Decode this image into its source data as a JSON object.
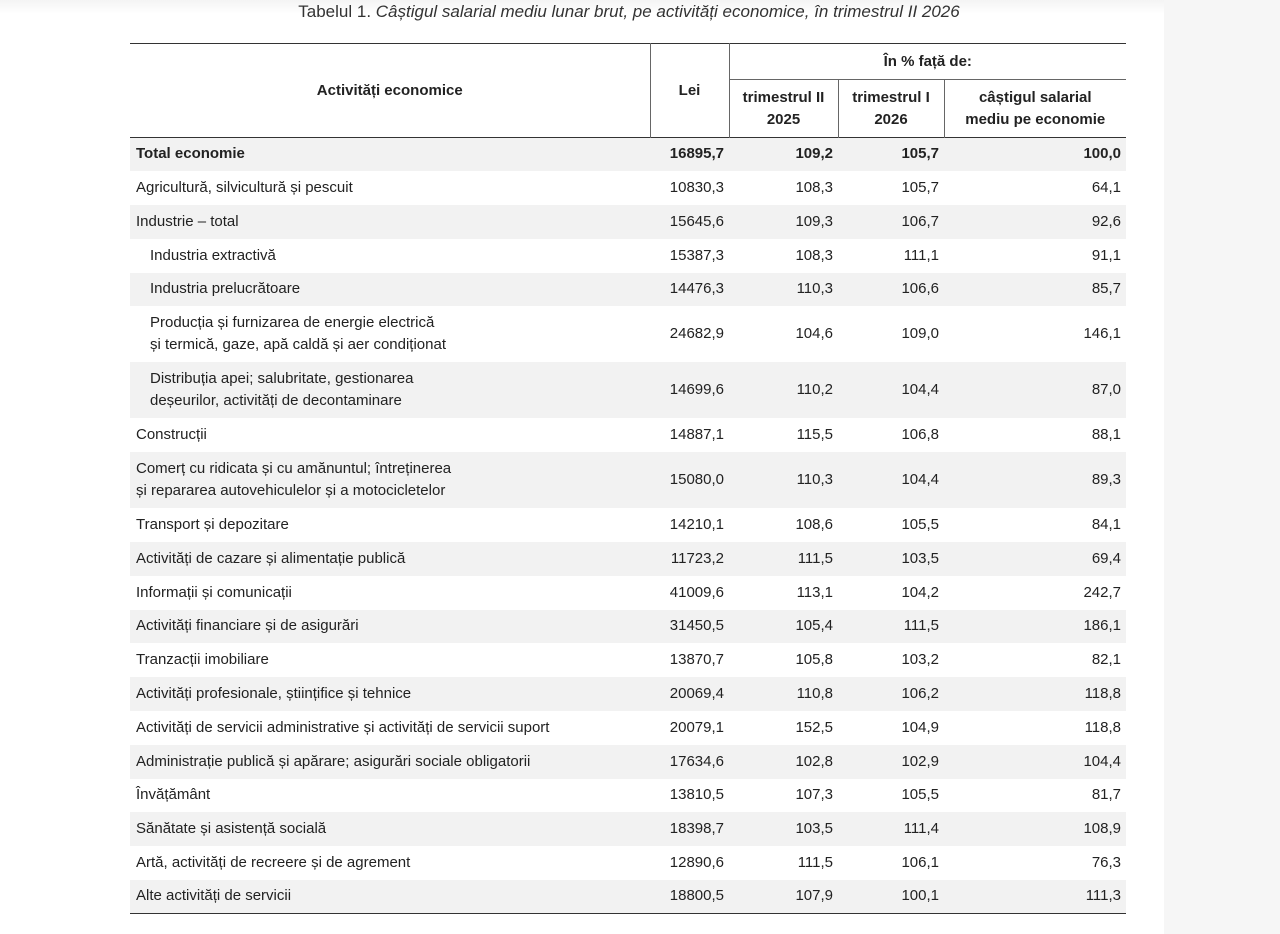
{
  "caption": {
    "label": "Tabelul 1.",
    "title": "Câștigul salarial mediu lunar brut, pe activități economice, în trimestrul II 2026"
  },
  "header": {
    "col_activity": "Activități economice",
    "col_lei": "Lei",
    "group": "În % față de:",
    "col_q2_line1": "trimestrul II",
    "col_q2_line2": "2025",
    "col_q1_line1": "trimestrul I",
    "col_q1_line2": "2026",
    "col_avg_line1": "câștigul salarial",
    "col_avg_line2": "mediu pe economie"
  },
  "rows": [
    {
      "name": [
        "Total economie"
      ],
      "lei": "16895,7",
      "q2": "109,2",
      "q1": "105,7",
      "avg": "100,0",
      "total": true
    },
    {
      "name": [
        "Agricultură, silvicultură și pescuit"
      ],
      "lei": "10830,3",
      "q2": "108,3",
      "q1": "105,7",
      "avg": "64,1"
    },
    {
      "name": [
        "Industrie – total"
      ],
      "lei": "15645,6",
      "q2": "109,3",
      "q1": "106,7",
      "avg": "92,6"
    },
    {
      "name": [
        "Industria extractivă"
      ],
      "lei": "15387,3",
      "q2": "108,3",
      "q1": "111,1",
      "avg": "91,1",
      "sub": true
    },
    {
      "name": [
        "Industria prelucrătoare"
      ],
      "lei": "14476,3",
      "q2": "110,3",
      "q1": "106,6",
      "avg": "85,7",
      "sub": true
    },
    {
      "name": [
        "Producția și furnizarea de energie electrică",
        "și termică, gaze, apă caldă și aer condiționat"
      ],
      "lei": "24682,9",
      "q2": "104,6",
      "q1": "109,0",
      "avg": "146,1",
      "sub": true
    },
    {
      "name": [
        "Distribuția apei; salubritate, gestionarea",
        "deșeurilor, activități de decontaminare"
      ],
      "lei": "14699,6",
      "q2": "110,2",
      "q1": "104,4",
      "avg": "87,0",
      "sub": true
    },
    {
      "name": [
        "Construcții"
      ],
      "lei": "14887,1",
      "q2": "115,5",
      "q1": "106,8",
      "avg": "88,1"
    },
    {
      "name": [
        "Comerț cu ridicata și cu amănuntul; întreținerea",
        "și repararea autovehiculelor și a motocicletelor"
      ],
      "lei": "15080,0",
      "q2": "110,3",
      "q1": "104,4",
      "avg": "89,3"
    },
    {
      "name": [
        "Transport și depozitare"
      ],
      "lei": "14210,1",
      "q2": "108,6",
      "q1": "105,5",
      "avg": "84,1"
    },
    {
      "name": [
        "Activități de cazare și alimentație publică"
      ],
      "lei": "11723,2",
      "q2": "111,5",
      "q1": "103,5",
      "avg": "69,4"
    },
    {
      "name": [
        "Informații și comunicații"
      ],
      "lei": "41009,6",
      "q2": "113,1",
      "q1": "104,2",
      "avg": "242,7"
    },
    {
      "name": [
        "Activități financiare și de asigurări"
      ],
      "lei": "31450,5",
      "q2": "105,4",
      "q1": "111,5",
      "avg": "186,1"
    },
    {
      "name": [
        "Tranzacții imobiliare"
      ],
      "lei": "13870,7",
      "q2": "105,8",
      "q1": "103,2",
      "avg": "82,1"
    },
    {
      "name": [
        "Activități profesionale, științifice și tehnice"
      ],
      "lei": "20069,4",
      "q2": "110,8",
      "q1": "106,2",
      "avg": "118,8"
    },
    {
      "name": [
        "Activități de servicii administrative și activități de servicii suport"
      ],
      "lei": "20079,1",
      "q2": "152,5",
      "q1": "104,9",
      "avg": "118,8"
    },
    {
      "name": [
        "Administrație publică și apărare; asigurări sociale obligatorii"
      ],
      "lei": "17634,6",
      "q2": "102,8",
      "q1": "102,9",
      "avg": "104,4"
    },
    {
      "name": [
        "Învățământ"
      ],
      "lei": "13810,5",
      "q2": "107,3",
      "q1": "105,5",
      "avg": "81,7"
    },
    {
      "name": [
        "Sănătate și asistență socială"
      ],
      "lei": "18398,7",
      "q2": "103,5",
      "q1": "111,4",
      "avg": "108,9"
    },
    {
      "name": [
        "Artă, activități de recreere și de agrement"
      ],
      "lei": "12890,6",
      "q2": "111,5",
      "q1": "106,1",
      "avg": "76,3"
    },
    {
      "name": [
        "Alte activități de servicii"
      ],
      "lei": "18800,5",
      "q2": "107,9",
      "q1": "100,1",
      "avg": "111,3"
    }
  ]
}
